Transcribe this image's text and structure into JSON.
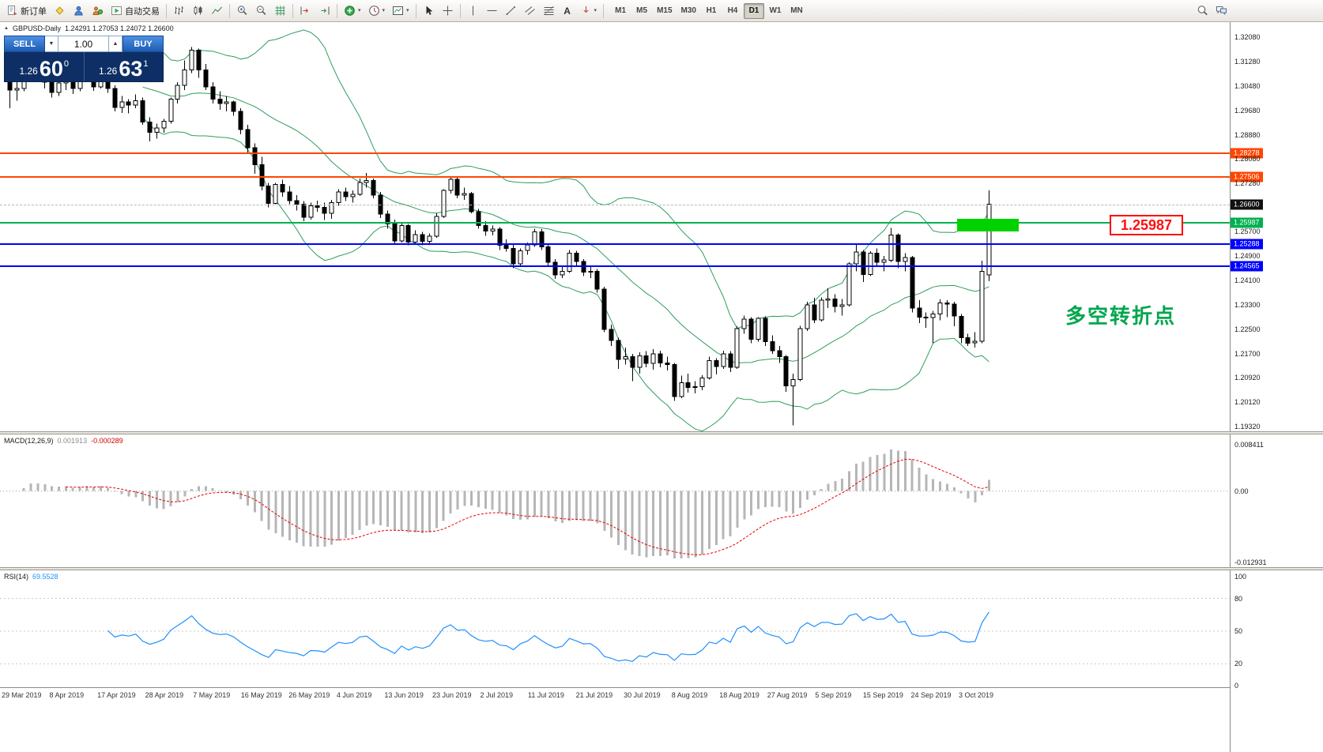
{
  "toolbar": {
    "new_order_label": "新订单",
    "autotrading_label": "自动交易",
    "text_tool_label": "A",
    "timeframes": [
      "M1",
      "M5",
      "M15",
      "M30",
      "H1",
      "H4",
      "D1",
      "W1",
      "MN"
    ],
    "active_timeframe": "D1"
  },
  "icons": {
    "caret_down": "▾",
    "spin_up": "▲",
    "spin_down": "▼",
    "collapse_arrow": "▲"
  },
  "chart": {
    "symbol": "GBPUSD-Daily",
    "ohlc_line": "1.24291 1.27053 1.24072 1.26600",
    "order_panel": {
      "sell_label": "SELL",
      "buy_label": "BUY",
      "volume": "1.00",
      "sell_price_prefix": "1.26",
      "sell_price_big": "60",
      "sell_price_sup": "0",
      "buy_price_prefix": "1.26",
      "buy_price_big": "63",
      "buy_price_sup": "1"
    },
    "annotation": "多空转折点",
    "callout": {
      "label": "1.25987",
      "price": 1.25987
    },
    "highlight_zone": {
      "price_top": 1.2612,
      "price_bottom": 1.2571,
      "color": "#00d200"
    },
    "current_price": {
      "label": "1.26600",
      "price": 1.266,
      "tag_color": "#111111"
    },
    "levels": [
      {
        "label": "1.28278",
        "price": 1.28278,
        "color": "#ff4500",
        "width": 2
      },
      {
        "label": "1.27506",
        "price": 1.27506,
        "color": "#ff4500",
        "width": 2
      },
      {
        "label": "1.25987",
        "price": 1.25987,
        "color": "#00b050",
        "width": 2
      },
      {
        "label": "1.25288",
        "price": 1.25288,
        "color": "#0000ff",
        "width": 2
      },
      {
        "label": "1.24565",
        "price": 1.24565,
        "color": "#0000ff",
        "width": 2
      }
    ],
    "axis_ticks": [
      "1.32080",
      "1.31280",
      "1.30480",
      "1.29680",
      "1.28880",
      "1.28080",
      "1.27280",
      "1.25700",
      "1.24900",
      "1.24100",
      "1.23300",
      "1.22500",
      "1.21700",
      "1.20920",
      "1.20120",
      "1.19320"
    ]
  },
  "macd": {
    "name": "MACD(12,26,9)",
    "value": "0.001913",
    "signal": "-0.000289",
    "scale": [
      {
        "label": "0.008411",
        "value": 0.008411
      },
      {
        "label": "0.00",
        "value": 0
      },
      {
        "label": "-0.012931",
        "value": -0.012931
      }
    ]
  },
  "rsi": {
    "name": "RSI(14)",
    "value": "69.5528",
    "scale": [
      {
        "label": "100",
        "value": 100
      },
      {
        "label": "80",
        "value": 80
      },
      {
        "label": "50",
        "value": 50
      },
      {
        "label": "20",
        "value": 20
      },
      {
        "label": "0",
        "value": 0
      }
    ],
    "levels": [
      80,
      50,
      20
    ]
  },
  "dates": [
    "29 Mar 2019",
    "8 Apr 2019",
    "17 Apr 2019",
    "28 Apr 2019",
    "7 May 2019",
    "16 May 2019",
    "26 May 2019",
    "4 Jun 2019",
    "13 Jun 2019",
    "23 Jun 2019",
    "2 Jul 2019",
    "11 Jul 2019",
    "21 Jul 2019",
    "30 Jul 2019",
    "8 Aug 2019",
    "18 Aug 2019",
    "27 Aug 2019",
    "5 Sep 2019",
    "15 Sep 2019",
    "24 Sep 2019",
    "3 Oct 2019"
  ],
  "chart_data": {
    "type": "candlestick",
    "symbol": "GBPUSD",
    "timeframe": "D1",
    "price_axis_range": [
      1.1932,
      1.3208
    ],
    "last_ohlc": {
      "open": 1.24291,
      "high": 1.27053,
      "low": 1.24072,
      "close": 1.266
    },
    "indicators": [
      "Bollinger Bands(20,2)",
      "MACD(12,26,9)",
      "RSI(14)"
    ],
    "candles": [
      [
        1.306,
        1.307,
        1.2975,
        1.3035
      ],
      [
        1.3035,
        1.306,
        1.3,
        1.304
      ],
      [
        1.304,
        1.311,
        1.303,
        1.3095
      ],
      [
        1.3095,
        1.3175,
        1.308,
        1.316
      ],
      [
        1.316,
        1.317,
        1.306,
        1.3075
      ],
      [
        1.3075,
        1.3105,
        1.304,
        1.306
      ],
      [
        1.306,
        1.3075,
        1.301,
        1.3027
      ],
      [
        1.3027,
        1.307,
        1.3015,
        1.3058
      ],
      [
        1.3058,
        1.3085,
        1.3035,
        1.3065
      ],
      [
        1.3065,
        1.3078,
        1.3022,
        1.304
      ],
      [
        1.304,
        1.309,
        1.303,
        1.3079
      ],
      [
        1.3079,
        1.31,
        1.306,
        1.3085
      ],
      [
        1.3085,
        1.3095,
        1.3032,
        1.3045
      ],
      [
        1.3045,
        1.3105,
        1.304,
        1.3095
      ],
      [
        1.3095,
        1.31,
        1.3025,
        1.304
      ],
      [
        1.304,
        1.305,
        1.2965,
        1.2978
      ],
      [
        1.2978,
        1.3015,
        1.296,
        1.2995
      ],
      [
        1.2995,
        1.3005,
        1.2958,
        1.2985
      ],
      [
        1.2985,
        1.302,
        1.2975,
        1.3
      ],
      [
        1.3,
        1.301,
        1.292,
        1.293
      ],
      [
        1.293,
        1.2945,
        1.2866,
        1.2896
      ],
      [
        1.2896,
        1.2925,
        1.2875,
        1.291
      ],
      [
        1.291,
        1.294,
        1.2895,
        1.2932
      ],
      [
        1.2932,
        1.301,
        1.2925,
        1.3005
      ],
      [
        1.3005,
        1.306,
        1.299,
        1.305
      ],
      [
        1.305,
        1.3132,
        1.3035,
        1.3101
      ],
      [
        1.3101,
        1.3176,
        1.309,
        1.3165
      ],
      [
        1.3165,
        1.317,
        1.3075,
        1.31
      ],
      [
        1.31,
        1.312,
        1.3035,
        1.3045
      ],
      [
        1.3045,
        1.306,
        1.299,
        1.3005
      ],
      [
        1.3005,
        1.303,
        1.297,
        1.299
      ],
      [
        1.299,
        1.3015,
        1.2965,
        1.2995
      ],
      [
        1.2995,
        1.3,
        1.295,
        1.2965
      ],
      [
        1.2965,
        1.2975,
        1.289,
        1.2905
      ],
      [
        1.2905,
        1.292,
        1.283,
        1.2845
      ],
      [
        1.2845,
        1.286,
        1.276,
        1.279
      ],
      [
        1.279,
        1.2815,
        1.2705,
        1.272
      ],
      [
        1.272,
        1.273,
        1.265,
        1.2663
      ],
      [
        1.2663,
        1.273,
        1.266,
        1.2725
      ],
      [
        1.2725,
        1.274,
        1.2685,
        1.27
      ],
      [
        1.27,
        1.272,
        1.266,
        1.2672
      ],
      [
        1.2672,
        1.269,
        1.264,
        1.266
      ],
      [
        1.266,
        1.267,
        1.2605,
        1.2617
      ],
      [
        1.2617,
        1.2665,
        1.261,
        1.2655
      ],
      [
        1.2655,
        1.2672,
        1.2635,
        1.265
      ],
      [
        1.265,
        1.2665,
        1.2608,
        1.263
      ],
      [
        1.263,
        1.2675,
        1.2612,
        1.2665
      ],
      [
        1.2665,
        1.271,
        1.2655,
        1.27
      ],
      [
        1.27,
        1.2715,
        1.267,
        1.2685
      ],
      [
        1.2685,
        1.2705,
        1.2665,
        1.2693
      ],
      [
        1.2693,
        1.2745,
        1.2688,
        1.2732
      ],
      [
        1.2732,
        1.2763,
        1.2715,
        1.2738
      ],
      [
        1.2738,
        1.2745,
        1.268,
        1.269
      ],
      [
        1.269,
        1.27,
        1.2615,
        1.2628
      ],
      [
        1.2628,
        1.264,
        1.258,
        1.2595
      ],
      [
        1.2595,
        1.261,
        1.2528,
        1.254
      ],
      [
        1.254,
        1.26,
        1.2535,
        1.259
      ],
      [
        1.259,
        1.2595,
        1.2525,
        1.2536
      ],
      [
        1.2536,
        1.2575,
        1.253,
        1.256
      ],
      [
        1.256,
        1.257,
        1.2525,
        1.2538
      ],
      [
        1.2538,
        1.2565,
        1.253,
        1.2555
      ],
      [
        1.2555,
        1.263,
        1.255,
        1.262
      ],
      [
        1.262,
        1.271,
        1.2615,
        1.2705
      ],
      [
        1.2705,
        1.275,
        1.2695,
        1.2742
      ],
      [
        1.2742,
        1.2748,
        1.268,
        1.269
      ],
      [
        1.269,
        1.2715,
        1.2675,
        1.2695
      ],
      [
        1.2695,
        1.27,
        1.263,
        1.2636
      ],
      [
        1.2636,
        1.2645,
        1.258,
        1.259
      ],
      [
        1.259,
        1.2605,
        1.2557,
        1.2572
      ],
      [
        1.2572,
        1.259,
        1.2558,
        1.2578
      ],
      [
        1.2578,
        1.2585,
        1.251,
        1.2525
      ],
      [
        1.2525,
        1.2545,
        1.2505,
        1.2515
      ],
      [
        1.2515,
        1.2528,
        1.245,
        1.2465
      ],
      [
        1.2465,
        1.2515,
        1.246,
        1.2508
      ],
      [
        1.2508,
        1.2535,
        1.2495,
        1.2527
      ],
      [
        1.2527,
        1.258,
        1.252,
        1.257
      ],
      [
        1.257,
        1.2578,
        1.251,
        1.252
      ],
      [
        1.252,
        1.253,
        1.2455,
        1.247
      ],
      [
        1.247,
        1.248,
        1.2415,
        1.2428
      ],
      [
        1.2428,
        1.2455,
        1.2418,
        1.244
      ],
      [
        1.244,
        1.251,
        1.2435,
        1.25
      ],
      [
        1.25,
        1.2508,
        1.246,
        1.2472
      ],
      [
        1.2472,
        1.248,
        1.2425,
        1.2438
      ],
      [
        1.2438,
        1.2455,
        1.2418,
        1.244
      ],
      [
        1.244,
        1.2448,
        1.237,
        1.2382
      ],
      [
        1.2382,
        1.239,
        1.224,
        1.225
      ],
      [
        1.225,
        1.2265,
        1.2195,
        1.2213
      ],
      [
        1.2213,
        1.2222,
        1.212,
        1.2152
      ],
      [
        1.2152,
        1.219,
        1.2135,
        1.216
      ],
      [
        1.216,
        1.217,
        1.208,
        1.2125
      ],
      [
        1.2125,
        1.2175,
        1.2105,
        1.2163
      ],
      [
        1.2163,
        1.2178,
        1.2125,
        1.2139
      ],
      [
        1.2139,
        1.2185,
        1.2118,
        1.217
      ],
      [
        1.217,
        1.218,
        1.2125,
        1.214
      ],
      [
        1.214,
        1.216,
        1.2115,
        1.2135
      ],
      [
        1.2135,
        1.214,
        1.2015,
        1.203
      ],
      [
        1.203,
        1.2098,
        1.2025,
        1.2075
      ],
      [
        1.2075,
        1.2105,
        1.2043,
        1.206
      ],
      [
        1.206,
        1.208,
        1.204,
        1.2062
      ],
      [
        1.2062,
        1.21,
        1.205,
        1.2091
      ],
      [
        1.2091,
        1.216,
        1.2085,
        1.2147
      ],
      [
        1.2147,
        1.2155,
        1.2102,
        1.2128
      ],
      [
        1.2128,
        1.218,
        1.212,
        1.217
      ],
      [
        1.217,
        1.2178,
        1.211,
        1.2125
      ],
      [
        1.2125,
        1.226,
        1.212,
        1.2252
      ],
      [
        1.2252,
        1.2295,
        1.2235,
        1.2283
      ],
      [
        1.2283,
        1.229,
        1.2205,
        1.2217
      ],
      [
        1.2217,
        1.229,
        1.221,
        1.2286
      ],
      [
        1.2286,
        1.2292,
        1.2195,
        1.221
      ],
      [
        1.221,
        1.223,
        1.217,
        1.218
      ],
      [
        1.218,
        1.2195,
        1.214,
        1.216
      ],
      [
        1.216,
        1.2165,
        1.2045,
        1.2065
      ],
      [
        1.2065,
        1.2105,
        1.1935,
        1.2085
      ],
      [
        1.2085,
        1.2262,
        1.208,
        1.2252
      ],
      [
        1.2252,
        1.234,
        1.2245,
        1.233
      ],
      [
        1.233,
        1.2353,
        1.227,
        1.2281
      ],
      [
        1.2281,
        1.2355,
        1.2275,
        1.2346
      ],
      [
        1.2346,
        1.2385,
        1.232,
        1.235
      ],
      [
        1.235,
        1.2365,
        1.2305,
        1.2325
      ],
      [
        1.2325,
        1.235,
        1.2295,
        1.233
      ],
      [
        1.233,
        1.247,
        1.2325,
        1.2465
      ],
      [
        1.2465,
        1.2527,
        1.244,
        1.2503
      ],
      [
        1.2503,
        1.251,
        1.2405,
        1.243
      ],
      [
        1.243,
        1.2506,
        1.2425,
        1.25
      ],
      [
        1.25,
        1.2515,
        1.2455,
        1.247
      ],
      [
        1.247,
        1.249,
        1.244,
        1.2477
      ],
      [
        1.2477,
        1.2582,
        1.247,
        1.2559
      ],
      [
        1.2559,
        1.2565,
        1.245,
        1.2472
      ],
      [
        1.2472,
        1.25,
        1.244,
        1.2486
      ],
      [
        1.2486,
        1.249,
        1.2305,
        1.232
      ],
      [
        1.232,
        1.2345,
        1.227,
        1.229
      ],
      [
        1.229,
        1.2305,
        1.2255,
        1.2289
      ],
      [
        1.2289,
        1.231,
        1.2205,
        1.23
      ],
      [
        1.23,
        1.2348,
        1.228,
        1.2337
      ],
      [
        1.2337,
        1.2345,
        1.229,
        1.2333
      ],
      [
        1.2333,
        1.234,
        1.226,
        1.2293
      ],
      [
        1.2293,
        1.23,
        1.2205,
        1.2222
      ],
      [
        1.2222,
        1.2235,
        1.2195,
        1.2205
      ],
      [
        1.2205,
        1.224,
        1.219,
        1.2211
      ],
      [
        1.2211,
        1.2475,
        1.2205,
        1.244
      ],
      [
        1.24291,
        1.27053,
        1.24072,
        1.266
      ]
    ]
  }
}
